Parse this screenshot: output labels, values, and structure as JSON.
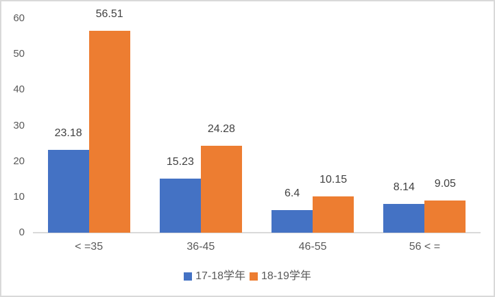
{
  "chart_data": {
    "type": "bar",
    "title": "",
    "xlabel": "",
    "ylabel": "",
    "categories": [
      "< =35",
      "36-45",
      "46-55",
      "56 < ="
    ],
    "series": [
      {
        "name": "17-18学年",
        "color": "#4472C4",
        "values": [
          23.18,
          15.23,
          6.4,
          8.14
        ]
      },
      {
        "name": "18-19学年",
        "color": "#ED7D31",
        "values": [
          56.51,
          24.28,
          10.15,
          9.05
        ]
      }
    ],
    "ylim": [
      0,
      60
    ],
    "yticks": [
      0,
      10,
      20,
      30,
      40,
      50,
      60
    ],
    "grid": false,
    "data_labels_shown": true,
    "legend_position": "bottom"
  },
  "style": {
    "background": "#FFFFFF",
    "frame_border_color": "#D9D9D9",
    "axis_line_color": "#D9D9D9",
    "tick_label_color": "#595959",
    "category_label_color": "#595959",
    "data_label_color": "#404040",
    "legend_text_color": "#595959"
  }
}
